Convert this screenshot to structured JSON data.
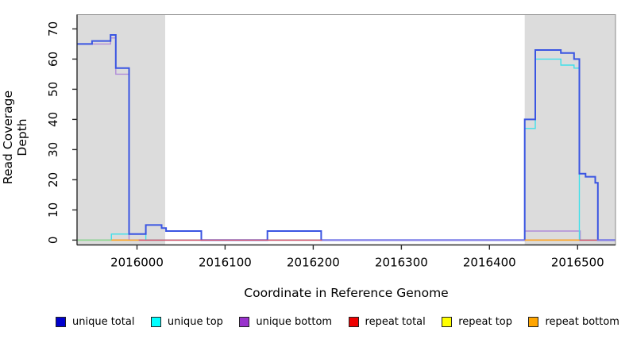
{
  "figure": {
    "xlabel": "Coordinate in Reference Genome",
    "ylabel": "Read Coverage Depth"
  },
  "legend": {
    "items": [
      {
        "label": "unique total",
        "color": "#0000CD"
      },
      {
        "label": "unique top",
        "color": "#00FFFF"
      },
      {
        "label": "unique bottom",
        "color": "#9932CC"
      },
      {
        "label": "repeat total",
        "color": "#EE0000"
      },
      {
        "label": "repeat top",
        "color": "#FFFF00"
      },
      {
        "label": "repeat bottom",
        "color": "#FFA500"
      }
    ]
  },
  "chart_data": {
    "type": "line",
    "subtype": "step",
    "xlabel": "Coordinate in Reference Genome",
    "ylabel": "Read Coverage Depth",
    "xlim": [
      2015932,
      2016543
    ],
    "ylim": [
      -1.6,
      74.7
    ],
    "x_ticks": [
      2016000,
      2016100,
      2016200,
      2016300,
      2016400,
      2016500
    ],
    "y_ticks": [
      0,
      10,
      20,
      30,
      40,
      50,
      60,
      70
    ],
    "grid": false,
    "legend_position": "bottom",
    "background_color": "#FFFFFF",
    "shaded_color": "#DCDCDC",
    "shaded_regions": [
      {
        "x1": 2015932,
        "x2": 2016032
      },
      {
        "x1": 2016440,
        "x2": 2016543
      }
    ],
    "series": [
      {
        "name": "repeat top",
        "line_color": "#8FD98F",
        "width": 1.2,
        "steps": [
          [
            2015932,
            0
          ],
          [
            2016543,
            0
          ]
        ]
      },
      {
        "name": "repeat total",
        "line_color": "#D84A64",
        "width": 1.2,
        "steps": [
          [
            2015932,
            0
          ],
          [
            2016543,
            0
          ]
        ]
      },
      {
        "name": "repeat bottom",
        "line_color": "#FFA520",
        "width": 1.4,
        "steps": [
          [
            2015932,
            0
          ],
          [
            2016543,
            0
          ]
        ]
      },
      {
        "name": "unique bottom",
        "line_color": "#B08CD9",
        "width": 1.4,
        "steps": [
          [
            2015932,
            65
          ],
          [
            2015970,
            67
          ],
          [
            2015976,
            55
          ],
          [
            2015991,
            0
          ],
          [
            2016440,
            3
          ],
          [
            2016503,
            0
          ],
          [
            2016543,
            0
          ]
        ]
      },
      {
        "name": "unique top",
        "line_color": "#3FE0EA",
        "width": 1.4,
        "steps": [
          [
            2015932,
            0
          ],
          [
            2015971,
            2
          ],
          [
            2016010,
            0
          ],
          [
            2016440,
            37
          ],
          [
            2016452,
            60
          ],
          [
            2016481,
            58
          ],
          [
            2016496,
            57
          ],
          [
            2016502,
            0
          ],
          [
            2016543,
            0
          ]
        ]
      },
      {
        "name": "unique total",
        "line_color": "#3A55E2",
        "width": 2,
        "steps": [
          [
            2015932,
            65
          ],
          [
            2015949,
            66
          ],
          [
            2015970,
            68
          ],
          [
            2015976,
            57
          ],
          [
            2015991,
            2
          ],
          [
            2016010,
            5
          ],
          [
            2016028,
            4
          ],
          [
            2016033,
            3
          ],
          [
            2016073,
            0
          ],
          [
            2016148,
            3
          ],
          [
            2016209,
            0
          ],
          [
            2016440,
            40
          ],
          [
            2016452,
            63
          ],
          [
            2016481,
            62
          ],
          [
            2016496,
            60
          ],
          [
            2016502,
            22
          ],
          [
            2016509,
            21
          ],
          [
            2016520,
            19
          ],
          [
            2016523,
            0
          ],
          [
            2016543,
            0
          ]
        ]
      }
    ],
    "zero_line_segments": [
      {
        "x1": 2015932,
        "x2": 2015971,
        "color": "#8FD98F"
      },
      {
        "x1": 2015971,
        "x2": 2016002,
        "color": "#FFA520"
      },
      {
        "x1": 2016002,
        "x2": 2016210,
        "color": "#D84A64"
      },
      {
        "x1": 2016210,
        "x2": 2016440,
        "color": "#8A7AE8"
      },
      {
        "x1": 2016440,
        "x2": 2016502,
        "color": "#FFA520"
      },
      {
        "x1": 2016502,
        "x2": 2016522,
        "color": "#D84A64"
      },
      {
        "x1": 2016522,
        "x2": 2016543,
        "color": "#8A7AE8"
      }
    ]
  }
}
